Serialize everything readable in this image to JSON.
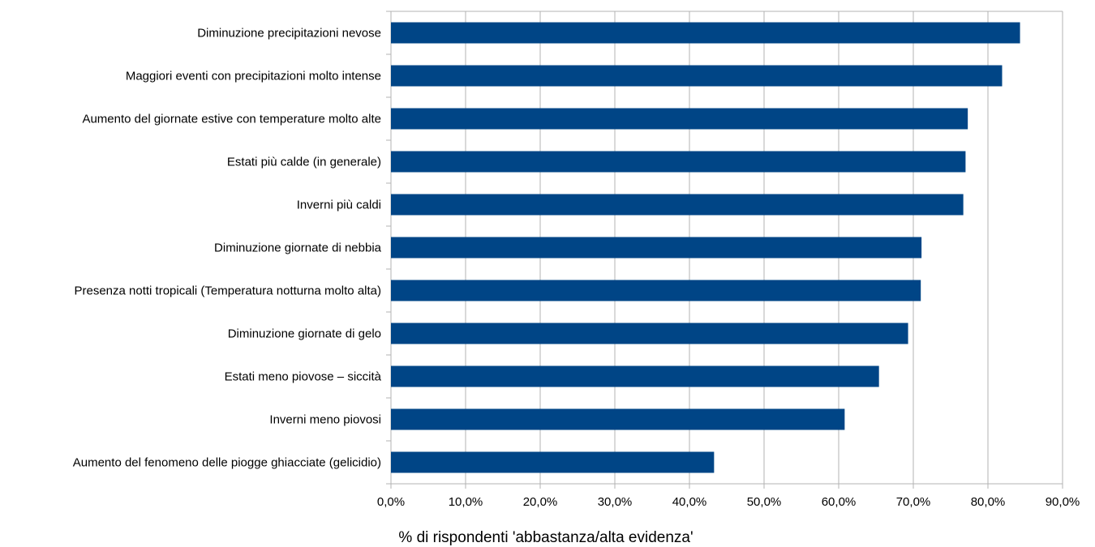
{
  "chart_data": {
    "type": "bar",
    "orientation": "horizontal",
    "categories": [
      "Diminuzione precipitazioni nevose",
      "Maggiori eventi con precipitazioni molto intense",
      "Aumento del giornate estive con temperature molto alte",
      "Estati più calde (in generale)",
      "Inverni più caldi",
      "Diminuzione giornate di nebbia",
      "Presenza notti tropicali (Temperatura notturna molto alta)",
      "Diminuzione giornate di gelo",
      "Estati meno piovose – siccità",
      "Inverni meno piovosi",
      "Aumento del fenomeno delle piogge ghiacciate (gelicidio)"
    ],
    "values": [
      84.3,
      81.9,
      77.3,
      77.0,
      76.7,
      71.1,
      71.0,
      69.3,
      65.4,
      60.8,
      43.3
    ],
    "title": "",
    "xlabel": "% di rispondenti 'abbastanza/alta evidenza'",
    "ylabel": "",
    "xlim": [
      0,
      90
    ],
    "x_ticks": [
      0,
      10,
      20,
      30,
      40,
      50,
      60,
      70,
      80,
      90
    ],
    "x_tick_labels": [
      "0,0%",
      "10,0%",
      "20,0%",
      "30,0%",
      "40,0%",
      "50,0%",
      "60,0%",
      "70,0%",
      "80,0%",
      "90,0%"
    ],
    "grid": "vertical",
    "legend": "none",
    "bar_color": "#004586",
    "grid_color": "#b3b3b3"
  }
}
